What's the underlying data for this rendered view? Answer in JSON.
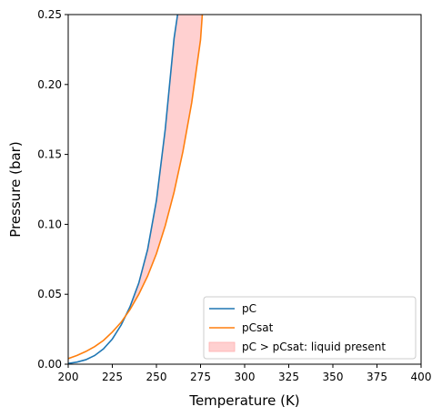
{
  "chart_data": {
    "type": "line",
    "xlabel": "Temperature (K)",
    "ylabel": "Pressure (bar)",
    "xlim": [
      200,
      400
    ],
    "ylim": [
      0.0,
      0.25
    ],
    "xticks": [
      "200",
      "225",
      "250",
      "275",
      "300",
      "325",
      "350",
      "375",
      "400"
    ],
    "yticks": [
      "0.00",
      "0.05",
      "0.10",
      "0.15",
      "0.20",
      "0.25"
    ],
    "grid": false,
    "legend_position": "lower right",
    "series": [
      {
        "name": "pC",
        "color": "#1f77b4",
        "x": [
          200,
          205,
          210,
          215,
          220,
          225,
          230,
          235,
          240,
          245,
          250,
          255,
          260,
          262
        ],
        "y": [
          0.0005,
          0.0015,
          0.0032,
          0.0062,
          0.011,
          0.018,
          0.028,
          0.041,
          0.058,
          0.082,
          0.117,
          0.168,
          0.233,
          0.25
        ]
      },
      {
        "name": "pCsat",
        "color": "#ff7f0e",
        "x": [
          200,
          205,
          210,
          215,
          220,
          225,
          230,
          235,
          240,
          245,
          250,
          255,
          260,
          265,
          270,
          275,
          276
        ],
        "y": [
          0.004,
          0.0063,
          0.0091,
          0.0126,
          0.017,
          0.023,
          0.03,
          0.039,
          0.05,
          0.063,
          0.079,
          0.099,
          0.123,
          0.152,
          0.187,
          0.232,
          0.25
        ]
      }
    ],
    "fill": {
      "name": "pC > pCsat: liquid present",
      "color": "#ffd0d0",
      "between": [
        "pC",
        "pCsat"
      ],
      "where": "pC > pCsat"
    }
  }
}
